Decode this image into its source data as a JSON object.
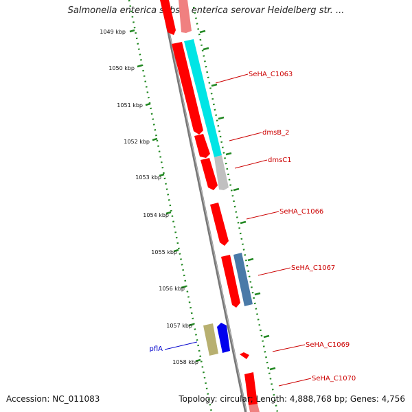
{
  "title": "Salmonella enterica subsp. enterica serovar Heidelberg str. ...",
  "accession": "Accession: NC_011083",
  "summary": "Topology: circular; Length: 4,888,768 bp; Genes: 4,756",
  "ticks": [
    "1049 kbp",
    "1050 kbp",
    "1051 kbp",
    "1052 kbp",
    "1053 kbp",
    "1054 kbp",
    "1055 kbp",
    "1056 kbp",
    "1057 kbp",
    "1058 kbp"
  ],
  "gene_labels": [
    {
      "text": "SeHA_C1063",
      "color": "#cc0000"
    },
    {
      "text": "dmsB_2",
      "color": "#cc0000"
    },
    {
      "text": "dmsC1",
      "color": "#cc0000"
    },
    {
      "text": "SeHA_C1066",
      "color": "#cc0000"
    },
    {
      "text": "SeHA_C1067",
      "color": "#cc0000"
    },
    {
      "text": "SeHA_C1069",
      "color": "#cc0000"
    },
    {
      "text": "SeHA_C1070",
      "color": "#cc0000"
    },
    {
      "text": "pflA",
      "color": "#0000cc"
    }
  ],
  "colors": {
    "cds": "#ff0000",
    "cds_light": "#f08080",
    "cyan": "#00e5e5",
    "grey": "#c0c0c0",
    "steelblue": "#4a7aa8",
    "olive": "#b8b070",
    "blue": "#0000ee",
    "backbone": "#888888",
    "tick": "#228822"
  }
}
